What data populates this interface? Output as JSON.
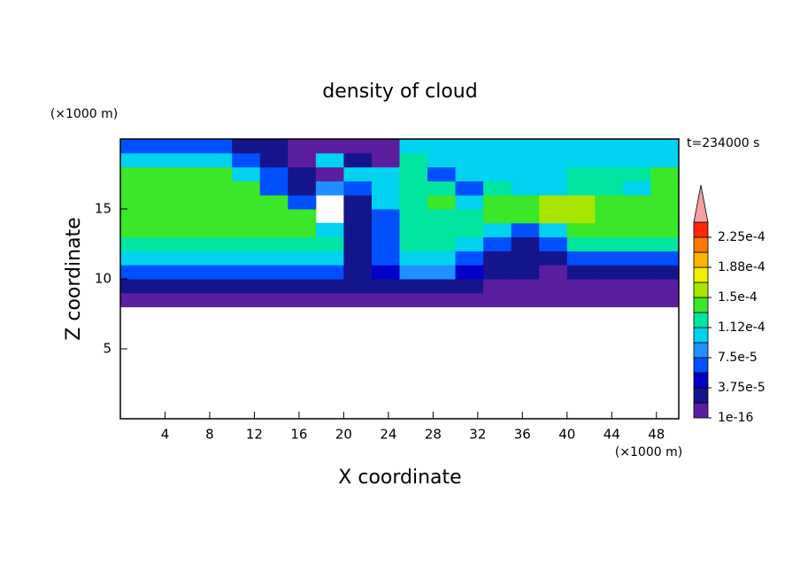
{
  "chart_data": {
    "type": "contour",
    "title": "density of cloud",
    "xlabel": "X coordinate",
    "ylabel": "Z coordinate",
    "xunit": "(×1000 m)",
    "yunit": "(×1000 m)",
    "annotation": "t=234000 s",
    "xlim": [
      0,
      50
    ],
    "ylim": [
      0,
      20
    ],
    "xticks": [
      4,
      8,
      12,
      16,
      20,
      24,
      28,
      32,
      36,
      40,
      44,
      48
    ],
    "yticks": [
      5,
      10,
      15
    ],
    "x": [
      1.25,
      3.75,
      6.25,
      8.75,
      11.25,
      13.75,
      16.25,
      18.75,
      21.25,
      23.75,
      26.25,
      28.75,
      31.25,
      33.75,
      36.25,
      38.75,
      41.25,
      43.75,
      46.25,
      48.75
    ],
    "z": [
      8.5,
      9.5,
      10.5,
      11.5,
      12.5,
      13.5,
      14.5,
      15.5,
      16.5,
      17.5,
      18.5,
      19.5
    ],
    "values": [
      [
        1e-05,
        1e-05,
        1e-05,
        1e-05,
        1e-05,
        1e-05,
        1e-05,
        1e-05,
        1e-05,
        1e-05,
        1e-05,
        1e-05,
        1e-05,
        1e-05,
        1e-05,
        1e-05,
        1e-05,
        1e-05,
        1e-05,
        1e-05
      ],
      [
        2.8e-05,
        2.8e-05,
        2.8e-05,
        2.8e-05,
        2.8e-05,
        2.8e-05,
        2.8e-05,
        2.8e-05,
        2.8e-05,
        2.8e-05,
        2.8e-05,
        2.8e-05,
        2.8e-05,
        1e-05,
        1e-05,
        1e-05,
        1e-05,
        1e-05,
        1e-05,
        1e-05
      ],
      [
        6.5e-05,
        6.5e-05,
        6.5e-05,
        6.5e-05,
        6.5e-05,
        6.5e-05,
        6.5e-05,
        6.5e-05,
        2.8e-05,
        4.7e-05,
        8.5e-05,
        8.5e-05,
        4.7e-05,
        2.8e-05,
        2.8e-05,
        1e-05,
        2.8e-05,
        2.8e-05,
        2.8e-05,
        2.8e-05
      ],
      [
        0.000102,
        0.000102,
        0.000102,
        0.000102,
        0.000102,
        0.000102,
        0.000102,
        0.000102,
        2.8e-05,
        6.5e-05,
        0.000102,
        0.000102,
        6.5e-05,
        2.8e-05,
        2.8e-05,
        2.8e-05,
        6.5e-05,
        6.5e-05,
        6.5e-05,
        6.5e-05
      ],
      [
        0.00012,
        0.00012,
        0.00012,
        0.00012,
        0.00012,
        0.00012,
        0.00012,
        0.00012,
        2.8e-05,
        6.5e-05,
        0.00012,
        0.00012,
        0.000102,
        6.5e-05,
        2.8e-05,
        6.5e-05,
        0.00012,
        0.00012,
        0.00012,
        0.00012
      ],
      [
        0.00014,
        0.00014,
        0.00014,
        0.00014,
        0.00014,
        0.00014,
        0.00014,
        0.000102,
        2.8e-05,
        6.5e-05,
        0.00012,
        0.00012,
        0.00012,
        0.000102,
        6.5e-05,
        0.000102,
        0.00014,
        0.00014,
        0.00014,
        0.00014
      ],
      [
        0.00014,
        0.00014,
        0.00014,
        0.00014,
        0.00014,
        0.00014,
        0.00014,
        0,
        2.8e-05,
        6.5e-05,
        0.00012,
        0.00012,
        0.00012,
        0.00014,
        0.00014,
        0.00016,
        0.00016,
        0.00014,
        0.00014,
        0.00014
      ],
      [
        0.00014,
        0.00014,
        0.00014,
        0.00014,
        0.00014,
        0.00014,
        6.5e-05,
        0,
        2.8e-05,
        0.000102,
        0.00012,
        0.00014,
        0.000102,
        0.00014,
        0.00014,
        0.00016,
        0.00016,
        0.00014,
        0.00014,
        0.00014
      ],
      [
        0.00014,
        0.00014,
        0.00014,
        0.00014,
        0.00014,
        6.5e-05,
        2.8e-05,
        8.5e-05,
        6.5e-05,
        0.000102,
        0.00012,
        0.00012,
        6.5e-05,
        0.00012,
        0.000102,
        0.000102,
        0.00012,
        0.00012,
        0.000102,
        0.00014
      ],
      [
        0.00014,
        0.00014,
        0.00014,
        0.00014,
        0.000102,
        6.5e-05,
        2.8e-05,
        1e-05,
        0.000102,
        0.000102,
        0.00012,
        6.5e-05,
        0.000102,
        0.000102,
        0.000102,
        0.000102,
        0.00012,
        0.00012,
        0.00012,
        0.00014
      ],
      [
        0.000102,
        0.000102,
        0.000102,
        0.000102,
        6.5e-05,
        2.8e-05,
        1e-05,
        0.000102,
        2.8e-05,
        1e-05,
        0.00012,
        0.000102,
        0.000102,
        0.000102,
        0.000102,
        0.000102,
        0.000102,
        0.000102,
        0.000102,
        0.000102
      ],
      [
        6.5e-05,
        6.5e-05,
        6.5e-05,
        6.5e-05,
        2.8e-05,
        2.8e-05,
        1e-05,
        1e-05,
        1e-05,
        1e-05,
        0.000102,
        0.000102,
        0.000102,
        0.000102,
        0.000102,
        0.000102,
        0.000102,
        0.000102,
        0.000102,
        0.000102
      ]
    ],
    "levels": [
      1e-16,
      1.875e-05,
      3.75e-05,
      5.625e-05,
      7.5e-05,
      9.375e-05,
      0.0001125,
      0.00013125,
      0.00015,
      0.00016875,
      0.0001875,
      0.00020625,
      0.000225,
      0.00024375
    ],
    "colors": [
      "#5a1e9e",
      "#14148c",
      "#0000c8",
      "#0050ff",
      "#1e90ff",
      "#00d2f0",
      "#00e6a0",
      "#3ce628",
      "#a8e600",
      "#f0f000",
      "#ffb400",
      "#ff7800",
      "#ff2800"
    ],
    "extend_color": "#f4a0a0",
    "colorbar_ticks": [
      {
        "value": 1e-16,
        "label": "1e-16"
      },
      {
        "value": 3.75e-05,
        "label": "3.75e-5"
      },
      {
        "value": 7.5e-05,
        "label": "7.5e-5"
      },
      {
        "value": 0.0001125,
        "label": "1.12e-4"
      },
      {
        "value": 0.00015,
        "label": "1.5e-4"
      },
      {
        "value": 0.0001875,
        "label": "1.88e-4"
      },
      {
        "value": 0.000225,
        "label": "2.25e-4"
      }
    ]
  }
}
